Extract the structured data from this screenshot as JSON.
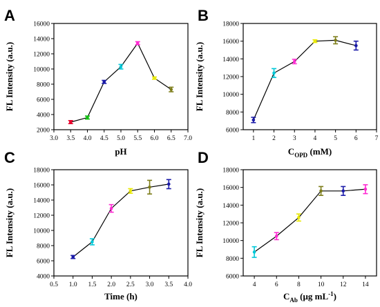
{
  "colors": {
    "axis": "#000000",
    "line": "#000000",
    "marker_palette": [
      "#e8002a",
      "#10c010",
      "#1a1aa8",
      "#00c8d8",
      "#ff2ad2",
      "#e8e800",
      "#7c7c18"
    ]
  },
  "chart_data": [
    {
      "panel": "A",
      "type": "line",
      "xlabel": "pH",
      "xlabel_sub": "",
      "xlabel_suffix": "",
      "ylabel": "FL Intensity (a.u.)",
      "xlim": [
        3.0,
        7.0
      ],
      "ylim": [
        2000,
        16000
      ],
      "xticks": [
        "3.0",
        "3.5",
        "4.0",
        "4.5",
        "5.0",
        "5.5",
        "6.0",
        "6.5",
        "7.0"
      ],
      "yticks": [
        "2000",
        "4000",
        "6000",
        "8000",
        "10000",
        "12000",
        "14000",
        "16000"
      ],
      "x": [
        3.5,
        4.0,
        4.5,
        5.0,
        5.5,
        6.0,
        6.5
      ],
      "y": [
        3000,
        3600,
        8300,
        10300,
        13400,
        8800,
        7300
      ],
      "err": [
        200,
        200,
        200,
        300,
        200,
        150,
        300
      ],
      "colors": [
        "#e8002a",
        "#10c010",
        "#1a1aa8",
        "#00c8d8",
        "#ff2ad2",
        "#e8e800",
        "#7c7c18"
      ]
    },
    {
      "panel": "B",
      "type": "line",
      "xlabel": "C",
      "xlabel_sub": "OPD",
      "xlabel_suffix": " (mM)",
      "ylabel": "FL Intensity (a.u.)",
      "xlim": [
        0.5,
        7.0
      ],
      "ylim": [
        6000,
        18000
      ],
      "xticks": [
        "1",
        "2",
        "3",
        "4",
        "5",
        "6",
        "7"
      ],
      "yticks": [
        "6000",
        "8000",
        "10000",
        "12000",
        "14000",
        "16000",
        "18000"
      ],
      "x": [
        1,
        2,
        3,
        4,
        5,
        6
      ],
      "y": [
        7100,
        12400,
        13700,
        16000,
        16100,
        15500
      ],
      "err": [
        300,
        500,
        250,
        150,
        400,
        500
      ],
      "colors": [
        "#1a1aa8",
        "#00c8d8",
        "#ff2ad2",
        "#e8e800",
        "#7c7c18",
        "#1a1aa8"
      ]
    },
    {
      "panel": "C",
      "type": "line",
      "xlabel": "Time (h)",
      "xlabel_sub": "",
      "xlabel_suffix": "",
      "ylabel": "FL Intensity (a.u.)",
      "xlim": [
        0.5,
        4.0
      ],
      "ylim": [
        4000,
        18000
      ],
      "xticks": [
        "0.5",
        "1.0",
        "1.5",
        "2.0",
        "2.5",
        "3.0",
        "3.5",
        "4.0"
      ],
      "yticks": [
        "4000",
        "6000",
        "8000",
        "10000",
        "12000",
        "14000",
        "16000",
        "18000"
      ],
      "x": [
        1.0,
        1.5,
        2.0,
        2.5,
        3.0,
        3.5
      ],
      "y": [
        6500,
        8500,
        12900,
        15200,
        15700,
        16100
      ],
      "err": [
        200,
        400,
        500,
        300,
        900,
        600
      ],
      "colors": [
        "#1a1aa8",
        "#00c8d8",
        "#ff2ad2",
        "#e8e800",
        "#7c7c18",
        "#1a1aa8"
      ]
    },
    {
      "panel": "D",
      "type": "line",
      "xlabel": "C",
      "xlabel_sub": "Ab",
      "xlabel_suffix": " (μg mL",
      "xlabel_sup": "-1",
      "xlabel_end": ")",
      "ylabel": "FL Intensity (a.u.)",
      "xlim": [
        3.0,
        15.0
      ],
      "ylim": [
        6000,
        18000
      ],
      "xticks": [
        "4",
        "6",
        "8",
        "10",
        "12",
        "14"
      ],
      "yticks": [
        "6000",
        "8000",
        "10000",
        "12000",
        "14000",
        "16000",
        "18000"
      ],
      "x": [
        4,
        6,
        8,
        10,
        12,
        14
      ],
      "y": [
        8700,
        10500,
        12600,
        15600,
        15600,
        15800
      ],
      "err": [
        600,
        400,
        400,
        500,
        500,
        500
      ],
      "colors": [
        "#00c8d8",
        "#ff2ad2",
        "#e8e800",
        "#7c7c18",
        "#1a1aa8",
        "#ff2ad2"
      ]
    }
  ]
}
